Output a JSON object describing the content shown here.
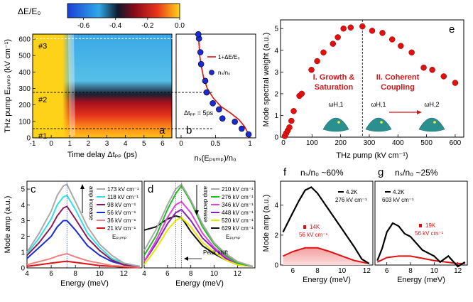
{
  "colorbar": {
    "title": "ΔE/E₀",
    "ticks": [
      "-0.6",
      "-0.4",
      "-0.2",
      "0.0"
    ]
  },
  "chart_data": [
    {
      "id": "a",
      "type": "heatmap",
      "panel_label": "a",
      "xlabel": "Time delay Δtₚₚ (ps)",
      "ylabel": "THz pump Eₚᵤₘₚ (kV cm⁻¹)",
      "xlim": [
        -1,
        6.5
      ],
      "ylim": [
        0,
        630
      ],
      "xticks": [
        "-1",
        "0",
        "1",
        "2",
        "3",
        "4",
        "5",
        "6"
      ],
      "yticks": [
        "0",
        "100",
        "200",
        "300",
        "400",
        "500",
        "600"
      ],
      "color_range": [
        -0.7,
        0.0
      ],
      "annotations": [
        "#3",
        "#2",
        "#1"
      ],
      "cut_levels_kVcm": [
        603,
        276,
        56
      ],
      "cut_labels_y": [
        603,
        276,
        56
      ]
    },
    {
      "id": "b",
      "type": "line",
      "panel_label": "b",
      "xlabel": "nₛ(Eₚᵤₘₚ)/n₀",
      "xlim": [
        0,
        1.0
      ],
      "xticks": [
        "0",
        "0.5",
        "1"
      ],
      "ylim": [
        0,
        630
      ],
      "annotation": "Δtₚₚ = 5ps",
      "series": [
        {
          "name": "1+ΔE/E₀",
          "x": [
            0.99,
            0.97,
            0.92,
            0.84,
            0.72,
            0.58,
            0.47,
            0.38,
            0.33,
            0.3,
            0.27,
            0.26,
            0.25
          ],
          "y": [
            0,
            30,
            70,
            110,
            150,
            190,
            240,
            300,
            360,
            420,
            500,
            570,
            630
          ]
        },
        {
          "name": "nₛ/n₀",
          "x": [
            0.98,
            0.88,
            0.78,
            0.6,
            0.55,
            0.46,
            0.37,
            0.35,
            0.29,
            0.28,
            0.26,
            0.25
          ],
          "y": [
            21,
            56,
            98,
            118,
            173,
            210,
            276,
            346,
            448,
            520,
            603,
            629
          ]
        }
      ]
    },
    {
      "id": "c",
      "type": "line",
      "panel_label": "c",
      "xlabel": "Energy (meV)",
      "ylabel": "Mode amp (a.u.)",
      "xlim": [
        4,
        13.5
      ],
      "ylim": [
        0,
        5.5
      ],
      "xticks": [
        "4",
        "6",
        "8",
        "10",
        "12"
      ],
      "yticks": [
        "0",
        "1",
        "2",
        "3",
        "4",
        "5"
      ],
      "arrow_label": "amp increase",
      "legend_title": "Eₚᵤₘₚ",
      "series": [
        {
          "name": "173 kV cm⁻¹",
          "color": "#aaaaaa",
          "x": [
            4,
            5,
            6,
            6.5,
            7,
            7.3,
            8,
            9,
            10,
            11,
            12,
            13.3
          ],
          "y": [
            1.0,
            2.2,
            3.6,
            4.6,
            5.2,
            5.3,
            4.2,
            2.6,
            1.5,
            0.8,
            0.3,
            0.1
          ]
        },
        {
          "name": "118 kV cm⁻¹",
          "color": "#33e0e6",
          "x": [
            4,
            5,
            6,
            6.5,
            7,
            7.3,
            8,
            9,
            10,
            11,
            12,
            13.3
          ],
          "y": [
            0.9,
            1.9,
            3.1,
            4.0,
            4.5,
            4.6,
            3.7,
            2.2,
            1.3,
            0.6,
            0.3,
            0.1
          ]
        },
        {
          "name": "98 kV cm⁻¹",
          "color": "#8e1a55",
          "x": [
            4,
            5,
            6,
            6.5,
            7,
            7.3,
            8,
            9,
            10,
            11,
            12,
            13.3
          ],
          "y": [
            0.8,
            1.6,
            2.6,
            3.3,
            3.8,
            3.9,
            3.1,
            1.9,
            1.1,
            0.5,
            0.2,
            0.1
          ]
        },
        {
          "name": "56 kV cm⁻¹",
          "color": "#1a2bd6",
          "x": [
            4,
            5,
            6,
            6.5,
            7,
            7.3,
            8,
            9,
            10,
            11,
            12,
            13.3
          ],
          "y": [
            0.6,
            1.3,
            2.0,
            2.6,
            3.0,
            3.0,
            2.4,
            1.4,
            0.8,
            0.4,
            0.2,
            0.1
          ]
        },
        {
          "name": "36 kV cm⁻¹",
          "color": "#f08080",
          "x": [
            4,
            5,
            6,
            6.5,
            7,
            7.3,
            8,
            9,
            10,
            11,
            12,
            13.3
          ],
          "y": [
            0.2,
            0.4,
            0.6,
            0.75,
            0.85,
            0.9,
            0.7,
            0.45,
            0.3,
            0.15,
            0.1,
            0.05
          ]
        },
        {
          "name": "21 kV cm⁻¹",
          "color": "#e01010",
          "x": [
            4,
            5,
            6,
            6.5,
            7,
            7.3,
            8,
            9,
            10,
            11,
            12,
            13.3
          ],
          "y": [
            0.1,
            0.2,
            0.3,
            0.35,
            0.4,
            0.42,
            0.35,
            0.25,
            0.15,
            0.1,
            0.05,
            0.02
          ]
        }
      ]
    },
    {
      "id": "d",
      "type": "line",
      "panel_label": "d",
      "xlabel": "Energy (meV)",
      "xlim": [
        4,
        13.5
      ],
      "ylim": [
        0,
        5.5
      ],
      "xticks": [
        "4",
        "6",
        "8",
        "10",
        "12"
      ],
      "arrow_label": "amp decrease",
      "legend_title": "Eₚᵤₘₚ",
      "peak_shift_label": "Peak shift",
      "series": [
        {
          "name": "210 kV cm⁻¹",
          "color": "#aaaaaa",
          "x": [
            4,
            5,
            6,
            6.7,
            7.2,
            8,
            9,
            10,
            11,
            12,
            13.3
          ],
          "y": [
            1.1,
            2.4,
            4.0,
            5.0,
            5.3,
            4.3,
            2.8,
            1.6,
            0.9,
            0.4,
            0.1
          ]
        },
        {
          "name": "276 kV cm⁻¹",
          "color": "#22bb22",
          "x": [
            4,
            5,
            6,
            6.7,
            7.2,
            8,
            9,
            10,
            11,
            12,
            13.3
          ],
          "y": [
            0.8,
            2.0,
            3.7,
            4.7,
            5.2,
            4.2,
            2.6,
            1.5,
            0.8,
            0.3,
            0.1
          ]
        },
        {
          "name": "346 kV cm⁻¹",
          "color": "#dd44dd",
          "x": [
            4,
            5,
            6,
            6.7,
            7.2,
            8,
            9,
            10,
            11,
            12,
            13.3
          ],
          "y": [
            0.4,
            1.7,
            3.2,
            4.0,
            4.2,
            3.5,
            2.2,
            1.3,
            0.7,
            0.3,
            0.1
          ]
        },
        {
          "name": "448 kV cm⁻¹",
          "color": "#8a1fb8",
          "x": [
            4,
            5,
            6,
            6.7,
            7.2,
            8,
            9,
            10,
            11,
            12,
            13.3
          ],
          "y": [
            0.4,
            1.5,
            2.8,
            3.5,
            3.7,
            3.0,
            1.9,
            1.2,
            0.6,
            0.3,
            0.1
          ]
        },
        {
          "name": "520 kV cm⁻¹",
          "color": "#e8e800",
          "x": [
            4,
            5,
            6,
            6.7,
            7.2,
            8,
            9,
            10,
            11,
            12,
            13.3
          ],
          "y": [
            0.2,
            1.2,
            2.4,
            3.0,
            3.2,
            2.6,
            1.6,
            1.0,
            0.5,
            0.2,
            0.1
          ]
        },
        {
          "name": "629 kV cm⁻¹",
          "color": "#111111",
          "x": [
            4,
            5,
            6,
            6.7,
            7.2,
            8,
            9,
            10,
            11,
            12,
            13.3
          ],
          "y": [
            2.4,
            2.6,
            3.1,
            3.3,
            3.2,
            2.3,
            1.4,
            0.9,
            0.5,
            0.2,
            0.1
          ]
        }
      ]
    },
    {
      "id": "e",
      "type": "scatter",
      "panel_label": "e",
      "xlabel": "THz pump (kV cm⁻¹)",
      "ylabel": "Mode spectral weight (a.u.)",
      "xlim": [
        -10,
        630
      ],
      "ylim": [
        0,
        5.4
      ],
      "xticks": [
        "0",
        "100",
        "200",
        "300",
        "400",
        "500",
        "600"
      ],
      "yticks": [
        "0",
        "1",
        "2",
        "3",
        "4",
        "5"
      ],
      "divider_x": 276,
      "region_labels": [
        "I. Growth & Saturation",
        "II. Coherent Coupling"
      ],
      "mode_labels": [
        "ωH,1",
        "ωH,1",
        "ωH,2"
      ],
      "points": {
        "x": [
          5,
          10,
          15,
          21,
          28,
          36,
          56,
          64,
          98,
          118,
          140,
          173,
          190,
          210,
          235,
          276,
          310,
          346,
          380,
          410,
          448,
          490,
          520,
          560,
          600
        ],
        "y": [
          0.05,
          0.18,
          0.3,
          0.45,
          0.75,
          1.2,
          1.9,
          2.0,
          3.1,
          3.5,
          3.9,
          4.3,
          4.6,
          5.0,
          5.05,
          5.1,
          4.9,
          4.8,
          4.5,
          4.2,
          3.9,
          3.2,
          3.1,
          2.8,
          2.5
        ]
      }
    },
    {
      "id": "f",
      "type": "line",
      "panel_label": "f",
      "title": "nₛ/n₀ ~60%",
      "xlabel": "Energy (meV)",
      "ylabel": "Mode amp (a.u.)",
      "xlim": [
        5,
        12.5
      ],
      "ylim": [
        0,
        5.6
      ],
      "xticks": [
        "6",
        "8",
        "10",
        "12"
      ],
      "yticks": [
        "0",
        "2",
        "4"
      ],
      "series": [
        {
          "name": "4.2K 276 kV cm⁻¹",
          "label_line1": "4.2K",
          "label_line2": "276 kV cm⁻¹",
          "color": "#000000",
          "x": [
            5.2,
            6,
            6.5,
            7,
            7.5,
            8,
            9,
            10,
            11,
            11.6,
            12.2
          ],
          "y": [
            2.2,
            3.5,
            4.3,
            5.0,
            5.2,
            4.8,
            3.6,
            2.4,
            1.2,
            0.4,
            0.1
          ]
        },
        {
          "name": "14K 56 kV cm⁻¹",
          "label_line1": "14K",
          "label_line2": "56 kV cm⁻¹",
          "color": "#e01010",
          "x": [
            5.2,
            6,
            7,
            8,
            9,
            10,
            11,
            12.2
          ],
          "y": [
            0.6,
            0.9,
            1.15,
            1.15,
            0.9,
            0.6,
            0.3,
            0.1
          ]
        }
      ]
    },
    {
      "id": "g",
      "type": "line",
      "panel_label": "g",
      "title": "nₛ/n₀ ~25%",
      "xlabel": "Energy (meV)",
      "xlim": [
        5,
        12.8
      ],
      "ylim": [
        0,
        5.6
      ],
      "xticks": [
        "6",
        "8",
        "10",
        "12"
      ],
      "series": [
        {
          "name": "4.2K 603 kV cm⁻¹",
          "label_line1": "4.2K",
          "label_line2": "603 kV cm⁻¹",
          "color": "#000000",
          "x": [
            5.2,
            5.6,
            6,
            6.5,
            7,
            7.5,
            8,
            9,
            10,
            10.5,
            11.2,
            12,
            12.6
          ],
          "y": [
            0.3,
            1.1,
            2.2,
            2.8,
            2.6,
            2.1,
            1.9,
            1.0,
            0.6,
            0.2,
            0.6,
            -0.1,
            0.2
          ]
        },
        {
          "name": "19K 56 kV cm⁻¹",
          "label_line1": "19K",
          "label_line2": "56 kV cm⁻¹",
          "color": "#e01010",
          "x": [
            5.2,
            6,
            7,
            8,
            9,
            10,
            11,
            12,
            12.6
          ],
          "y": [
            0.2,
            0.5,
            0.6,
            0.6,
            0.45,
            0.3,
            0.2,
            0.1,
            0.1
          ]
        }
      ]
    }
  ]
}
